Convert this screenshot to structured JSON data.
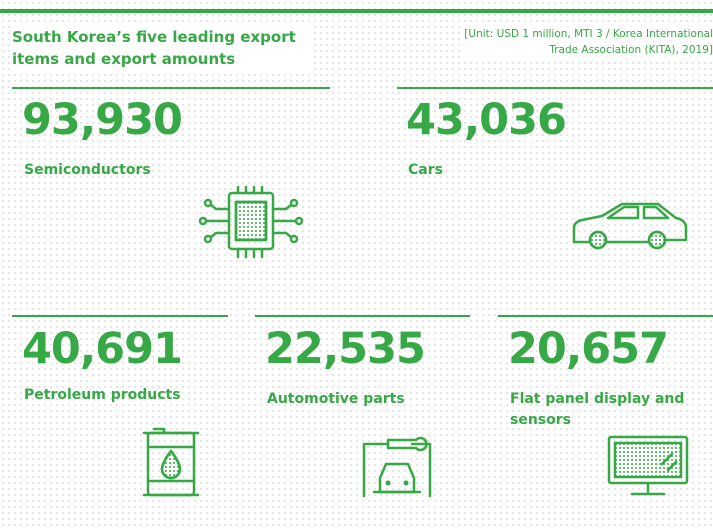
{
  "header": {
    "title": "South Korea’s five leading export items and export amounts",
    "unit": [
      "[Unit: USD 1 million, MTI 3 / Korea International",
      "Trade Association (KITA), 2019]"
    ]
  },
  "items": [
    {
      "value": "93,930",
      "label": "Semiconductors"
    },
    {
      "value": "43,036",
      "label": "Cars"
    },
    {
      "value": "40,691",
      "label": "Petroleum products"
    },
    {
      "value": "22,535",
      "label": "Automotive parts"
    },
    {
      "value": "20,657",
      "label": "Flat panel display and sensors"
    }
  ]
}
